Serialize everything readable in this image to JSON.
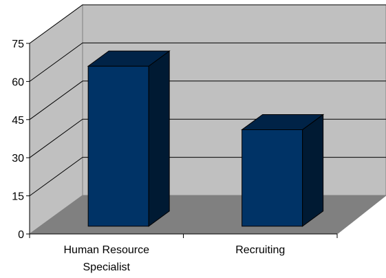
{
  "chart_data": {
    "type": "bar",
    "style": "3d-column",
    "categories": [
      "Human Resource Specialist",
      "Recruiting"
    ],
    "category_lines": [
      [
        "Human Resource",
        "Specialist"
      ],
      [
        "Recruiting"
      ]
    ],
    "values": [
      63,
      38
    ],
    "ylim": [
      0,
      75
    ],
    "yticks": [
      0,
      15,
      30,
      45,
      60,
      75
    ],
    "grid": true,
    "legend": "none",
    "colors": {
      "bar_front": "#003366",
      "bar_side": "#001a33",
      "bar_top": "#002347",
      "back_wall": "#c0c0c0",
      "side_wall": "#c0c0c0",
      "floor": "#808080",
      "gridline": "#000000"
    }
  }
}
